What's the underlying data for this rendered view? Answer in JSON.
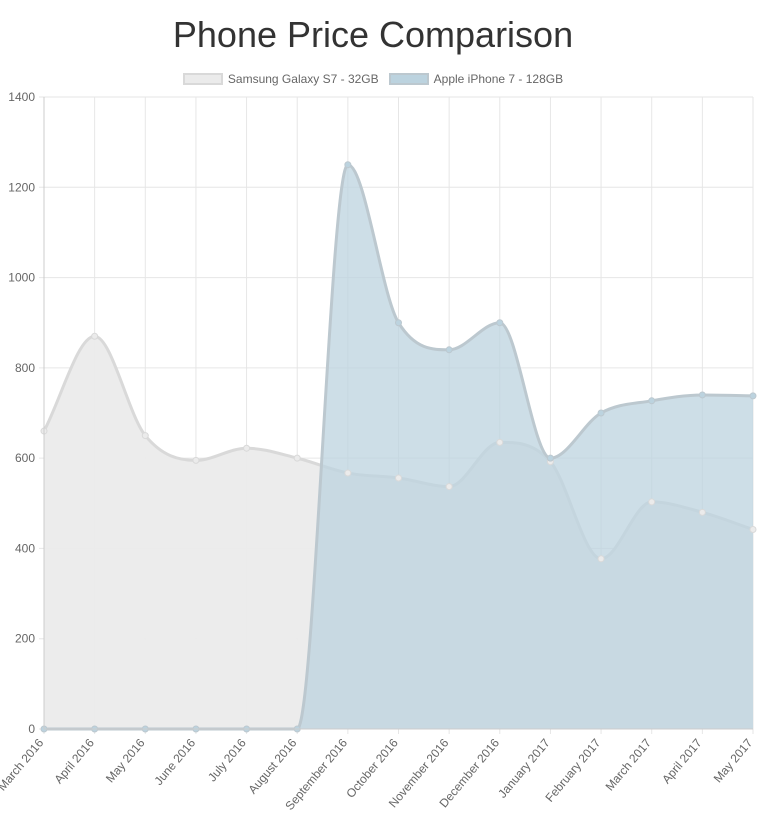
{
  "chart_data": {
    "type": "area",
    "title": "Phone Price Comparison",
    "categories": [
      "March 2016",
      "April 2016",
      "May 2016",
      "June 2016",
      "July 2016",
      "August 2016",
      "September 2016",
      "October 2016",
      "November 2016",
      "December 2016",
      "January 2017",
      "February 2017",
      "March 2017",
      "April 2017",
      "May 2017"
    ],
    "series": [
      {
        "name": "Samsung Galaxy S7 - 32GB",
        "values": [
          660,
          870,
          650,
          595,
          622,
          600,
          567,
          556,
          537,
          635,
          592,
          377,
          503,
          480,
          442
        ],
        "fill": "#ebebeb",
        "stroke": "#d9d9d9"
      },
      {
        "name": "Apple iPhone 7 - 128GB",
        "values": [
          0,
          0,
          0,
          0,
          0,
          0,
          1250,
          900,
          840,
          900,
          600,
          700,
          727,
          740,
          738
        ],
        "fill": "#bcd3df",
        "stroke": "#bcc8cf"
      }
    ],
    "xlabel": "",
    "ylabel": "",
    "ylim": [
      0,
      1400
    ],
    "yticks": [
      0,
      200,
      400,
      600,
      800,
      1000,
      1200,
      1400
    ],
    "grid": true,
    "legend_position": "top"
  }
}
